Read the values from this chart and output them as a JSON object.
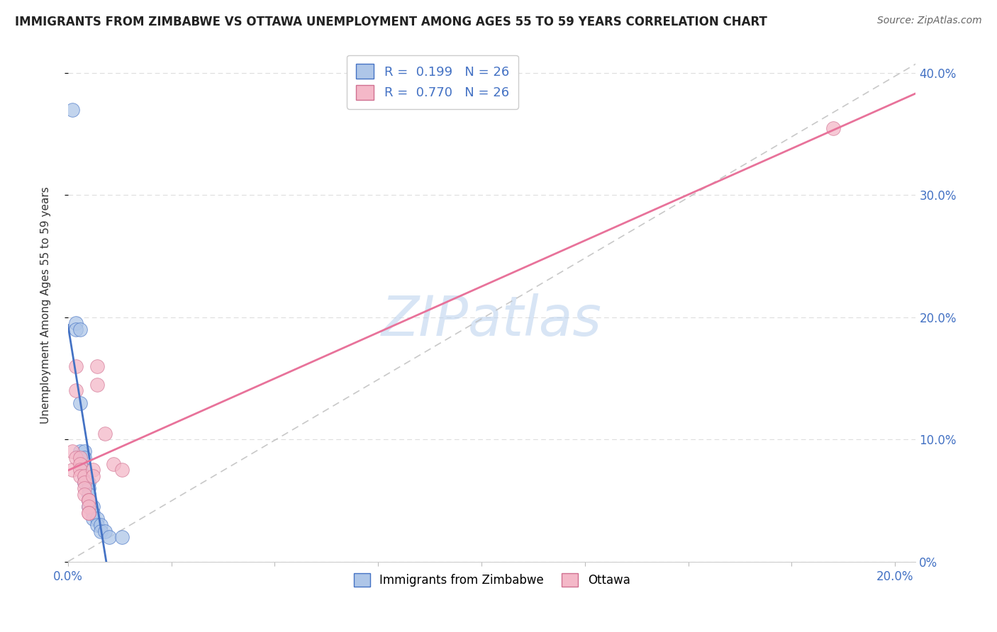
{
  "title": "IMMIGRANTS FROM ZIMBABWE VS OTTAWA UNEMPLOYMENT AMONG AGES 55 TO 59 YEARS CORRELATION CHART",
  "source": "Source: ZipAtlas.com",
  "ylabel": "Unemployment Among Ages 55 to 59 years",
  "legend_r1": "R =  0.199",
  "legend_n1": "N = 26",
  "legend_r2": "R =  0.770",
  "legend_n2": "N = 26",
  "blue_color": "#aec6e8",
  "pink_color": "#f4b8c8",
  "blue_line_color": "#4472c4",
  "pink_line_color": "#e8729a",
  "blue_scatter": [
    [
      0.001,
      0.37
    ],
    [
      0.002,
      0.195
    ],
    [
      0.002,
      0.19
    ],
    [
      0.003,
      0.19
    ],
    [
      0.003,
      0.13
    ],
    [
      0.003,
      0.09
    ],
    [
      0.004,
      0.09
    ],
    [
      0.004,
      0.085
    ],
    [
      0.004,
      0.075
    ],
    [
      0.004,
      0.07
    ],
    [
      0.004,
      0.065
    ],
    [
      0.005,
      0.065
    ],
    [
      0.005,
      0.06
    ],
    [
      0.005,
      0.055
    ],
    [
      0.005,
      0.05
    ],
    [
      0.005,
      0.045
    ],
    [
      0.006,
      0.045
    ],
    [
      0.006,
      0.04
    ],
    [
      0.006,
      0.035
    ],
    [
      0.007,
      0.035
    ],
    [
      0.007,
      0.03
    ],
    [
      0.008,
      0.03
    ],
    [
      0.008,
      0.025
    ],
    [
      0.009,
      0.025
    ],
    [
      0.01,
      0.02
    ],
    [
      0.013,
      0.02
    ]
  ],
  "pink_scatter": [
    [
      0.001,
      0.09
    ],
    [
      0.001,
      0.075
    ],
    [
      0.002,
      0.16
    ],
    [
      0.002,
      0.14
    ],
    [
      0.002,
      0.085
    ],
    [
      0.003,
      0.085
    ],
    [
      0.003,
      0.08
    ],
    [
      0.003,
      0.075
    ],
    [
      0.003,
      0.07
    ],
    [
      0.004,
      0.07
    ],
    [
      0.004,
      0.065
    ],
    [
      0.004,
      0.06
    ],
    [
      0.004,
      0.055
    ],
    [
      0.005,
      0.05
    ],
    [
      0.005,
      0.05
    ],
    [
      0.005,
      0.045
    ],
    [
      0.005,
      0.04
    ],
    [
      0.005,
      0.04
    ],
    [
      0.006,
      0.075
    ],
    [
      0.006,
      0.07
    ],
    [
      0.007,
      0.16
    ],
    [
      0.007,
      0.145
    ],
    [
      0.009,
      0.105
    ],
    [
      0.011,
      0.08
    ],
    [
      0.013,
      0.075
    ],
    [
      0.185,
      0.355
    ]
  ],
  "xlim": [
    0.0,
    0.205
  ],
  "ylim": [
    0.0,
    0.42
  ],
  "xticks": [
    0.0,
    0.025,
    0.05,
    0.075,
    0.1,
    0.125,
    0.15,
    0.175,
    0.2
  ],
  "yticks": [
    0.0,
    0.1,
    0.2,
    0.3,
    0.4
  ],
  "ytick_labels": [
    "0%",
    "10.0%",
    "20.0%",
    "30.0%",
    "40.0%"
  ],
  "background_color": "#ffffff",
  "watermark": "ZIPatlas",
  "grid_color": "#dddddd",
  "ref_line_color": "#bbbbbb"
}
